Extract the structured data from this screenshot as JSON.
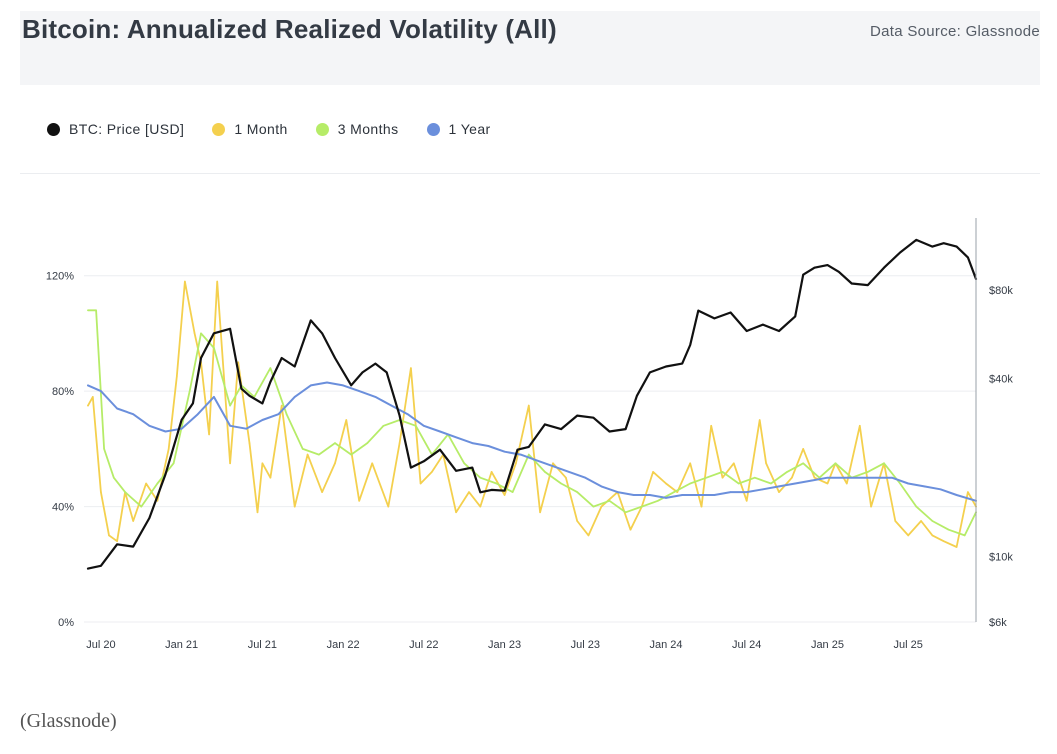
{
  "header": {
    "title": "Bitcoin: Annualized Realized Volatility (All)",
    "source": "Data Source: Glassnode"
  },
  "caption": "(Glassnode)",
  "colors": {
    "btc": "#111111",
    "m1": "#f4d04e",
    "m3": "#b6ec68",
    "y1": "#6b8fdc"
  },
  "legend": [
    {
      "label": "BTC: Price [USD]",
      "color": "#111111"
    },
    {
      "label": "1 Month",
      "color": "#f4d04e"
    },
    {
      "label": "3 Months",
      "color": "#b6ec68"
    },
    {
      "label": "1 Year",
      "color": "#6b8fdc"
    }
  ],
  "chart_data": {
    "type": "line",
    "title": "Bitcoin: Annualized Realized Volatility (All)",
    "x_tick_labels": [
      "Jul 20",
      "Jan 21",
      "Jul 21",
      "Jan 22",
      "Jul 22",
      "Jan 23",
      "Jul 23",
      "Jan 24",
      "Jul 24",
      "Jan 25",
      "Jul 25"
    ],
    "x_range": [
      2020.42,
      2025.92
    ],
    "y_left": {
      "ticks": [
        0,
        40,
        80,
        120
      ],
      "tick_labels": [
        "0%",
        "40%",
        "80%",
        "120%"
      ],
      "range": [
        0,
        140
      ]
    },
    "y_right": {
      "scale": "log",
      "ticks": [
        6000,
        10000,
        40000,
        80000
      ],
      "tick_labels": [
        "$6k",
        "$10k",
        "$40k",
        "$80k"
      ],
      "range": [
        6000,
        140000
      ]
    },
    "series": [
      {
        "name": "BTC: Price [USD]",
        "axis": "right",
        "x": [
          2020.42,
          2020.5,
          2020.6,
          2020.7,
          2020.8,
          2020.9,
          2021.0,
          2021.07,
          2021.12,
          2021.2,
          2021.3,
          2021.37,
          2021.42,
          2021.5,
          2021.55,
          2021.62,
          2021.7,
          2021.8,
          2021.87,
          2021.95,
          2022.05,
          2022.12,
          2022.2,
          2022.27,
          2022.35,
          2022.42,
          2022.5,
          2022.6,
          2022.7,
          2022.8,
          2022.85,
          2022.92,
          2023.0,
          2023.08,
          2023.15,
          2023.25,
          2023.35,
          2023.45,
          2023.55,
          2023.65,
          2023.75,
          2023.82,
          2023.9,
          2024.0,
          2024.1,
          2024.15,
          2024.2,
          2024.3,
          2024.4,
          2024.5,
          2024.6,
          2024.7,
          2024.8,
          2024.85,
          2024.92,
          2025.0,
          2025.07,
          2025.15,
          2025.25,
          2025.35,
          2025.45,
          2025.55,
          2025.65,
          2025.72,
          2025.8,
          2025.87,
          2025.92
        ],
        "values": [
          9100,
          9300,
          11000,
          10800,
          13500,
          19000,
          29000,
          33000,
          47000,
          57000,
          59000,
          37000,
          35000,
          33000,
          39000,
          47000,
          44000,
          63000,
          57000,
          47000,
          38000,
          42000,
          45000,
          42000,
          30000,
          20000,
          21000,
          23000,
          19500,
          20000,
          16500,
          16800,
          16700,
          23000,
          23500,
          28000,
          27000,
          30000,
          29500,
          26500,
          27000,
          35000,
          42000,
          44000,
          45000,
          52000,
          68000,
          64000,
          67000,
          58000,
          61000,
          58000,
          65000,
          90000,
          95000,
          97000,
          92000,
          84000,
          83000,
          95000,
          107000,
          118000,
          112000,
          115000,
          112000,
          103000,
          87000
        ]
      },
      {
        "name": "1 Month",
        "axis": "left",
        "x": [
          2020.42,
          2020.45,
          2020.5,
          2020.55,
          2020.6,
          2020.65,
          2020.7,
          2020.78,
          2020.85,
          2020.92,
          2020.97,
          2021.02,
          2021.08,
          2021.12,
          2021.17,
          2021.22,
          2021.3,
          2021.35,
          2021.42,
          2021.47,
          2021.5,
          2021.55,
          2021.62,
          2021.7,
          2021.78,
          2021.87,
          2021.95,
          2022.02,
          2022.1,
          2022.18,
          2022.28,
          2022.35,
          2022.42,
          2022.48,
          2022.55,
          2022.62,
          2022.7,
          2022.78,
          2022.85,
          2022.92,
          2023.0,
          2023.07,
          2023.15,
          2023.22,
          2023.3,
          2023.38,
          2023.45,
          2023.52,
          2023.6,
          2023.7,
          2023.78,
          2023.85,
          2023.92,
          2024.0,
          2024.07,
          2024.15,
          2024.22,
          2024.28,
          2024.35,
          2024.42,
          2024.5,
          2024.58,
          2024.62,
          2024.7,
          2024.78,
          2024.85,
          2024.92,
          2025.0,
          2025.05,
          2025.12,
          2025.2,
          2025.27,
          2025.35,
          2025.42,
          2025.5,
          2025.58,
          2025.65,
          2025.72,
          2025.8,
          2025.87,
          2025.92
        ],
        "values": [
          75,
          78,
          45,
          30,
          28,
          45,
          35,
          48,
          42,
          60,
          85,
          118,
          100,
          90,
          65,
          118,
          55,
          90,
          62,
          38,
          55,
          50,
          75,
          40,
          58,
          45,
          55,
          70,
          42,
          55,
          40,
          62,
          88,
          48,
          52,
          58,
          38,
          45,
          40,
          52,
          44,
          55,
          75,
          38,
          55,
          50,
          35,
          30,
          40,
          45,
          32,
          40,
          52,
          48,
          45,
          55,
          40,
          68,
          50,
          55,
          42,
          70,
          55,
          45,
          50,
          60,
          50,
          48,
          55,
          48,
          68,
          40,
          55,
          35,
          30,
          35,
          30,
          28,
          26,
          45,
          40
        ]
      },
      {
        "name": "3 Months",
        "axis": "left",
        "x": [
          2020.42,
          2020.47,
          2020.52,
          2020.58,
          2020.65,
          2020.75,
          2020.85,
          2020.95,
          2021.05,
          2021.12,
          2021.2,
          2021.3,
          2021.37,
          2021.45,
          2021.55,
          2021.65,
          2021.75,
          2021.85,
          2021.95,
          2022.05,
          2022.15,
          2022.25,
          2022.35,
          2022.45,
          2022.55,
          2022.65,
          2022.75,
          2022.85,
          2022.95,
          2023.05,
          2023.15,
          2023.25,
          2023.35,
          2023.45,
          2023.55,
          2023.65,
          2023.75,
          2023.85,
          2023.95,
          2024.05,
          2024.15,
          2024.25,
          2024.35,
          2024.45,
          2024.55,
          2024.65,
          2024.75,
          2024.85,
          2024.95,
          2025.05,
          2025.15,
          2025.25,
          2025.35,
          2025.45,
          2025.55,
          2025.65,
          2025.75,
          2025.85,
          2025.92
        ],
        "values": [
          108,
          108,
          60,
          50,
          45,
          40,
          48,
          55,
          80,
          100,
          95,
          75,
          82,
          78,
          88,
          72,
          60,
          58,
          62,
          58,
          62,
          68,
          70,
          68,
          58,
          65,
          55,
          50,
          48,
          45,
          58,
          52,
          48,
          45,
          40,
          42,
          38,
          40,
          42,
          45,
          48,
          50,
          52,
          48,
          50,
          48,
          52,
          55,
          50,
          55,
          50,
          52,
          55,
          48,
          40,
          35,
          32,
          30,
          38
        ]
      },
      {
        "name": "1 Year",
        "axis": "left",
        "x": [
          2020.42,
          2020.5,
          2020.6,
          2020.7,
          2020.8,
          2020.9,
          2021.0,
          2021.1,
          2021.2,
          2021.3,
          2021.4,
          2021.5,
          2021.6,
          2021.7,
          2021.8,
          2021.9,
          2022.0,
          2022.1,
          2022.2,
          2022.3,
          2022.4,
          2022.5,
          2022.6,
          2022.7,
          2022.8,
          2022.9,
          2023.0,
          2023.1,
          2023.2,
          2023.3,
          2023.4,
          2023.5,
          2023.6,
          2023.7,
          2023.8,
          2023.9,
          2024.0,
          2024.1,
          2024.2,
          2024.3,
          2024.4,
          2024.5,
          2024.6,
          2024.7,
          2024.8,
          2024.9,
          2025.0,
          2025.1,
          2025.2,
          2025.3,
          2025.4,
          2025.5,
          2025.6,
          2025.7,
          2025.8,
          2025.92
        ],
        "values": [
          82,
          80,
          74,
          72,
          68,
          66,
          67,
          72,
          78,
          68,
          67,
          70,
          72,
          78,
          82,
          83,
          82,
          80,
          78,
          75,
          72,
          68,
          66,
          64,
          62,
          61,
          59,
          58,
          56,
          54,
          52,
          50,
          47,
          45,
          44,
          44,
          43,
          44,
          44,
          44,
          45,
          45,
          46,
          47,
          48,
          49,
          50,
          50,
          50,
          50,
          50,
          48,
          47,
          46,
          44,
          42
        ]
      }
    ]
  }
}
